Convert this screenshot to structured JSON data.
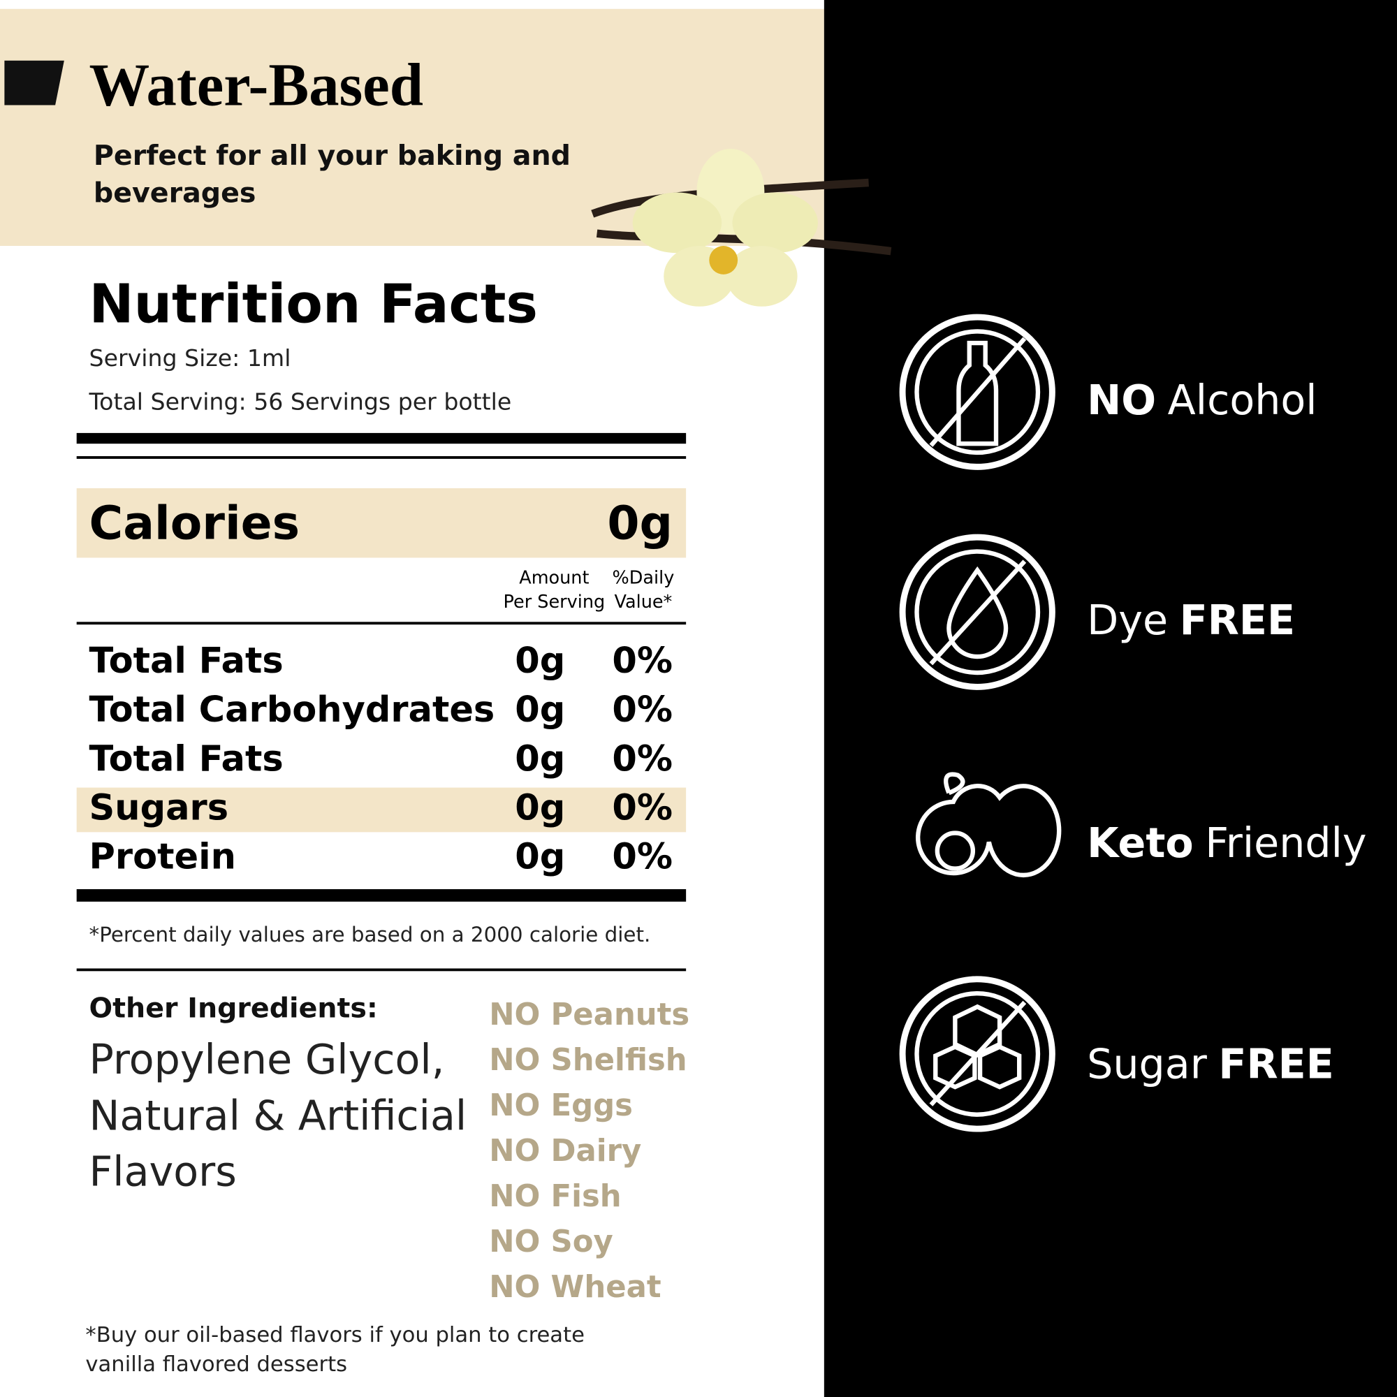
{
  "header": {
    "title": "Water-Based",
    "subtitle_lines": [
      "Perfect for all your baking and",
      "beverages"
    ]
  },
  "nutrition": {
    "title": "Nutrition Facts",
    "serving_size": "Serving Size: 1ml",
    "total_serving": "Total Serving: 56 Servings per bottle",
    "calories": {
      "label": "Calories",
      "value": "0g"
    },
    "column_headers": {
      "amount": [
        "Amount",
        "Per Serving"
      ],
      "daily": [
        "%Daily",
        "Value*"
      ]
    },
    "rows": [
      {
        "nutrient": "Total Fats",
        "amount": "0g",
        "daily": "0%"
      },
      {
        "nutrient": "Total Carbohydrates",
        "amount": "0g",
        "daily": "0%"
      },
      {
        "nutrient": "Total Fats",
        "amount": "0g",
        "daily": "0%"
      },
      {
        "nutrient": "Sugars",
        "amount": "0g",
        "daily": "0%"
      },
      {
        "nutrient": "Protein",
        "amount": "0g",
        "daily": "0%"
      }
    ],
    "footnote": "*Percent daily values are based on a 2000 calorie diet."
  },
  "ingredients": {
    "label": "Other Ingredients:",
    "lines": [
      "Propylene Glycol,",
      "Natural & Artificial",
      "Flavors"
    ]
  },
  "allergens": [
    "NO Peanuts",
    "NO Shelfish",
    "NO Eggs",
    "NO Dairy",
    "NO Fish",
    "NO Soy",
    "NO Wheat"
  ],
  "note_lines": [
    "*Buy our oil-based flavors if you plan to create",
    "vanilla flavored desserts"
  ],
  "features": [
    {
      "parts": [
        {
          "text": "NO",
          "bold": true
        },
        {
          "text": "Alcohol",
          "bold": false
        }
      ]
    },
    {
      "parts": [
        {
          "text": "Dye",
          "bold": false
        },
        {
          "text": "FREE",
          "bold": true
        }
      ]
    },
    {
      "parts": [
        {
          "text": "Keto",
          "bold": true
        },
        {
          "text": "Friendly",
          "bold": false
        }
      ]
    },
    {
      "parts": [
        {
          "text": "Sugar",
          "bold": false
        },
        {
          "text": "FREE",
          "bold": true
        }
      ]
    }
  ]
}
